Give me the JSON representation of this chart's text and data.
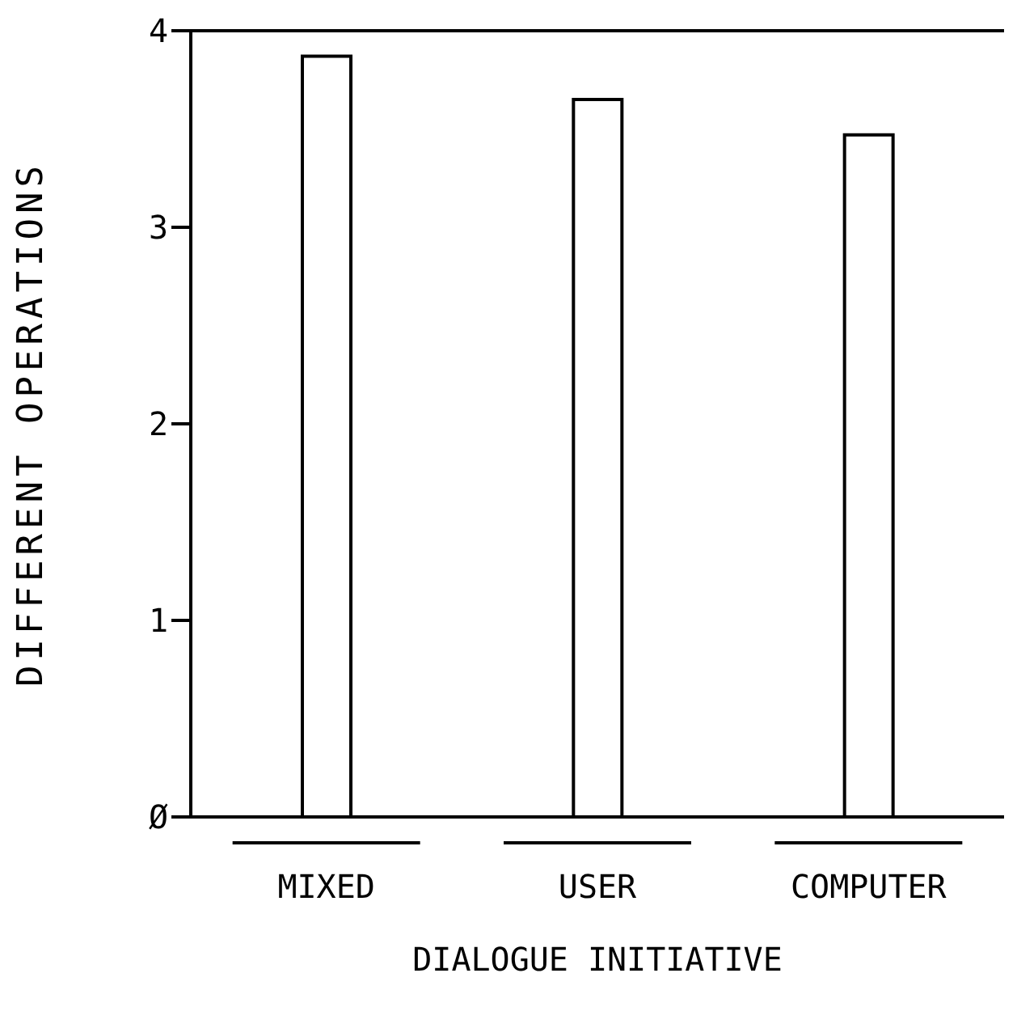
{
  "chart_data": {
    "type": "bar",
    "xlabel": "DIALOGUE INITIATIVE",
    "ylabel": "DIFFERENT OPERATIONS",
    "categories": [
      "MIXED",
      "USER",
      "COMPUTER"
    ],
    "values": [
      3.87,
      3.65,
      3.47
    ],
    "color": "#ffffff",
    "ylim": [
      0,
      4
    ],
    "yticks": [
      {
        "value": 0,
        "label": "Ø"
      },
      1,
      2,
      3,
      4
    ],
    "grid": false
  }
}
